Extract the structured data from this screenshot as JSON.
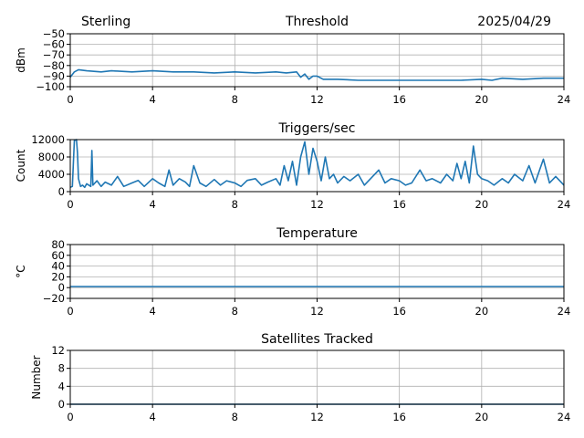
{
  "header": {
    "station": "Sterling",
    "date": "2025/04/29"
  },
  "colors": {
    "series": "#1f77b4",
    "grid": "#b0b0b0",
    "axis": "#000000"
  },
  "chart_data": [
    {
      "type": "line",
      "title": "Threshold",
      "ylabel": "dBm",
      "xlim": [
        0,
        24
      ],
      "ylim": [
        -100,
        -50
      ],
      "xticks": [
        "0",
        "4",
        "8",
        "12",
        "16",
        "20",
        "24"
      ],
      "yticks": [
        "−50",
        "−60",
        "−70",
        "−80",
        "−90",
        "−100"
      ],
      "ytick_values": [
        -50,
        -60,
        -70,
        -80,
        -90,
        -100
      ],
      "grid": true,
      "series": [
        {
          "x": [
            0,
            0.2,
            0.4,
            0.8,
            1.5,
            2,
            3,
            4,
            5,
            6,
            7,
            8,
            9,
            10,
            10.5,
            11,
            11.2,
            11.4,
            11.6,
            11.8,
            12,
            12.3,
            13,
            14,
            16,
            18,
            19,
            20,
            20.5,
            21,
            22,
            23,
            24
          ],
          "y": [
            -91,
            -86,
            -84,
            -85,
            -86,
            -85,
            -86,
            -85,
            -86,
            -86,
            -87,
            -86,
            -87,
            -86,
            -87,
            -86,
            -91,
            -88,
            -93,
            -90,
            -90,
            -93,
            -93,
            -94,
            -94,
            -94,
            -94,
            -93,
            -94,
            -92,
            -93,
            -92,
            -92
          ]
        }
      ]
    },
    {
      "type": "line",
      "title": "Triggers/sec",
      "ylabel": "Count",
      "xlim": [
        0,
        24
      ],
      "ylim": [
        0,
        12000
      ],
      "xticks": [
        "0",
        "4",
        "8",
        "12",
        "16",
        "20",
        "24"
      ],
      "yticks": [
        "12000",
        "8000",
        "4000",
        "0"
      ],
      "ytick_values": [
        12000,
        8000,
        4000,
        0
      ],
      "grid": true,
      "series": [
        {
          "x": [
            0,
            0.1,
            0.2,
            0.3,
            0.35,
            0.4,
            0.5,
            0.6,
            0.7,
            0.8,
            1.0,
            1.05,
            1.1,
            1.3,
            1.5,
            1.7,
            2.0,
            2.3,
            2.6,
            3.0,
            3.3,
            3.6,
            4.0,
            4.3,
            4.6,
            4.8,
            5.0,
            5.3,
            5.6,
            5.8,
            6.0,
            6.3,
            6.6,
            7.0,
            7.3,
            7.6,
            8.0,
            8.3,
            8.6,
            9.0,
            9.3,
            9.6,
            10.0,
            10.2,
            10.4,
            10.6,
            10.8,
            11.0,
            11.2,
            11.4,
            11.6,
            11.8,
            12.0,
            12.2,
            12.4,
            12.6,
            12.8,
            13.0,
            13.3,
            13.6,
            14.0,
            14.3,
            14.6,
            15.0,
            15.3,
            15.6,
            16.0,
            16.3,
            16.6,
            17.0,
            17.3,
            17.6,
            18.0,
            18.3,
            18.6,
            18.8,
            19.0,
            19.2,
            19.4,
            19.6,
            19.8,
            20.0,
            20.3,
            20.6,
            21.0,
            21.3,
            21.6,
            22.0,
            22.3,
            22.6,
            23.0,
            23.3,
            23.6,
            24.0
          ],
          "y": [
            1000,
            1200,
            11800,
            12000,
            9000,
            3000,
            1200,
            1500,
            1000,
            1800,
            1200,
            9500,
            1500,
            2500,
            1200,
            2200,
            1500,
            3500,
            1200,
            2000,
            2600,
            1200,
            3000,
            2000,
            1200,
            5000,
            1500,
            3000,
            2200,
            1200,
            6000,
            2000,
            1200,
            2800,
            1500,
            2500,
            2000,
            1200,
            2600,
            3000,
            1500,
            2200,
            3000,
            1500,
            6000,
            2500,
            7000,
            1500,
            8000,
            11500,
            4000,
            10000,
            7000,
            2500,
            8000,
            3000,
            4000,
            2000,
            3500,
            2500,
            4000,
            1500,
            3000,
            5000,
            2000,
            3000,
            2500,
            1500,
            2000,
            5000,
            2500,
            3000,
            2000,
            4000,
            2500,
            6500,
            3000,
            7000,
            2000,
            10500,
            4000,
            3000,
            2500,
            1500,
            3000,
            2000,
            4000,
            2500,
            6000,
            2000,
            7500,
            2000,
            3500,
            1500
          ]
        }
      ]
    },
    {
      "type": "line",
      "title": "Temperature",
      "ylabel": "°C",
      "xlim": [
        0,
        24
      ],
      "ylim": [
        -20,
        80
      ],
      "xticks": [
        "0",
        "4",
        "8",
        "12",
        "16",
        "20",
        "24"
      ],
      "yticks": [
        "80",
        "60",
        "40",
        "20",
        "0",
        "−20"
      ],
      "ytick_values": [
        80,
        60,
        40,
        20,
        0,
        -20
      ],
      "grid": true,
      "series": [
        {
          "x": [
            0,
            24
          ],
          "y": [
            2,
            2
          ]
        }
      ]
    },
    {
      "type": "line",
      "title": "Satellites Tracked",
      "ylabel": "Number",
      "xlim": [
        0,
        24
      ],
      "ylim": [
        0,
        12
      ],
      "xticks": [
        "0",
        "4",
        "8",
        "12",
        "16",
        "20",
        "24"
      ],
      "yticks": [
        "12",
        "8",
        "4",
        "0"
      ],
      "ytick_values": [
        12,
        8,
        4,
        0
      ],
      "grid": true,
      "series": [
        {
          "x": [
            0,
            24
          ],
          "y": [
            0,
            0
          ]
        }
      ]
    }
  ]
}
